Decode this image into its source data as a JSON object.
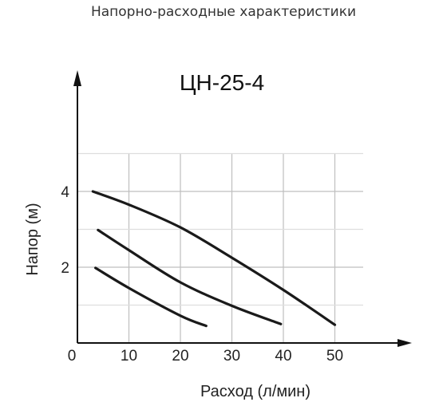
{
  "header": {
    "text": "Напорно-расходные характеристики"
  },
  "chart_data": {
    "type": "line",
    "title": "ЦН-25-4",
    "xlabel": "Расход (л/мин)",
    "ylabel": "Напор (м)",
    "xlim": [
      0,
      60
    ],
    "ylim": [
      0,
      6.5
    ],
    "x_ticks": [
      0,
      10,
      20,
      30,
      40,
      50
    ],
    "x_tick_labels": [
      "0",
      "10",
      "20",
      "30",
      "40",
      "50"
    ],
    "y_ticks": [
      2,
      4
    ],
    "y_tick_labels": [
      "2",
      "4"
    ],
    "grid": {
      "vertical": [
        10,
        20,
        30,
        40,
        50
      ],
      "horizontal": [
        1,
        2,
        3,
        4,
        5
      ]
    },
    "series": [
      {
        "x": [
          3.5,
          10,
          20,
          25
        ],
        "y": [
          1.98,
          1.45,
          0.72,
          0.45
        ]
      },
      {
        "x": [
          4,
          10,
          20,
          30,
          39.5
        ],
        "y": [
          2.98,
          2.45,
          1.6,
          0.98,
          0.5
        ]
      },
      {
        "x": [
          3,
          10,
          20,
          30,
          40,
          50
        ],
        "y": [
          4,
          3.65,
          3.05,
          2.25,
          1.4,
          0.48
        ]
      }
    ],
    "colors": {
      "curve": "#1a1a1a",
      "axis": "#111111",
      "grid": "#bfbfbf",
      "grid_light": "#dedede"
    }
  }
}
